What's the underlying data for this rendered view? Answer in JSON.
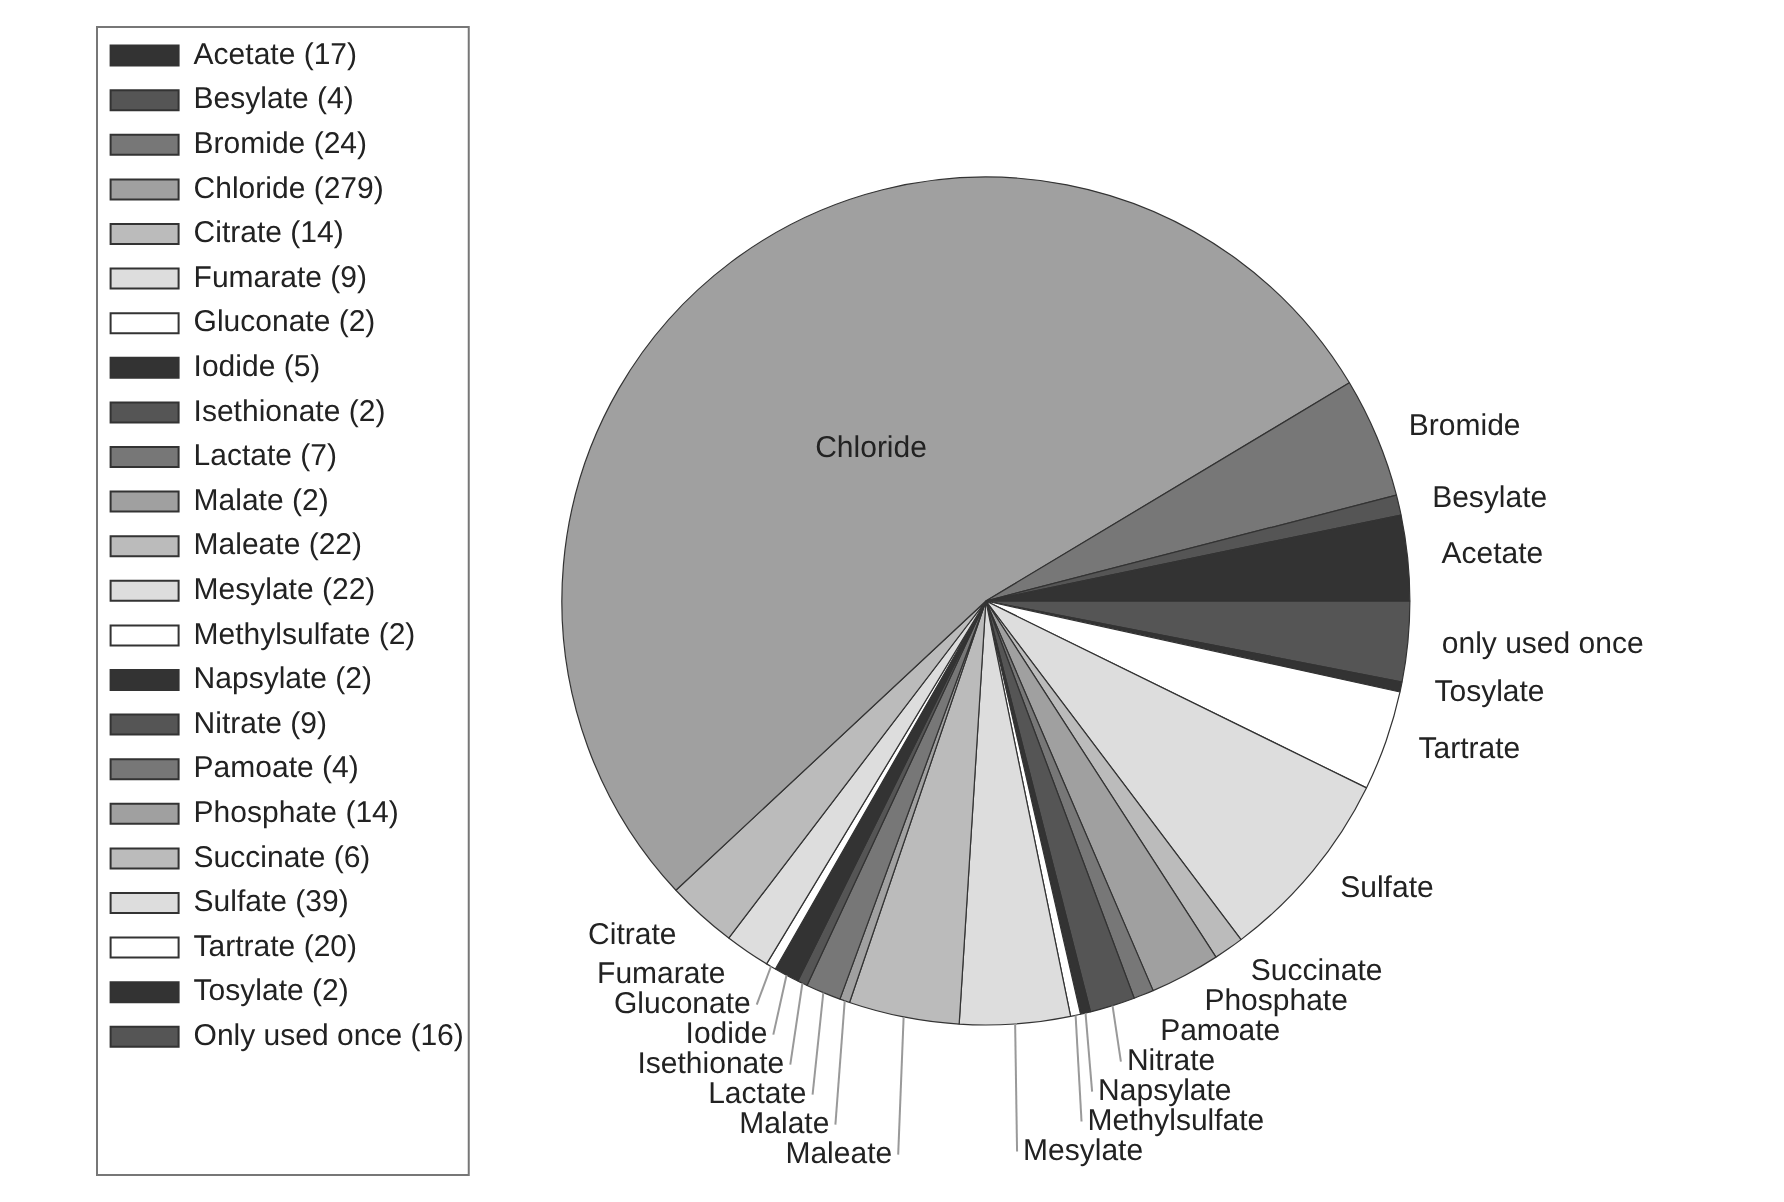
{
  "chart_data": {
    "type": "pie",
    "categories": [
      "Acetate (17)",
      "Besylate (4)",
      "Bromide (24)",
      "Chloride (279)",
      "Citrate (14)",
      "Fumarate (9)",
      "Gluconate (2)",
      "Iodide (5)",
      "Isethionate (2)",
      "Lactate (7)",
      "Malate (2)",
      "Maleate (22)",
      "Mesylate (22)",
      "Methylsulfate (2)",
      "Napsylate (2)",
      "Nitrate (9)",
      "Pamoate (4)",
      "Phosphate (14)",
      "Succinate (6)",
      "Sulfate (39)",
      "Tartrate (20)",
      "Tosylate (2)",
      "Only used once (16)"
    ],
    "values": [
      17,
      4,
      24,
      279,
      14,
      9,
      2,
      5,
      2,
      7,
      2,
      22,
      22,
      2,
      2,
      9,
      4,
      14,
      6,
      39,
      20,
      2,
      16
    ],
    "colors": [
      "#333333",
      "#555555",
      "#777777",
      "#a0a0a0",
      "#bbbbbb",
      "#dddddd",
      "#ffffff",
      "#333333",
      "#555555",
      "#777777",
      "#a0a0a0",
      "#bbbbbb",
      "#dddddd",
      "#ffffff",
      "#333333",
      "#555555",
      "#777777",
      "#a0a0a0",
      "#bbbbbb",
      "#dddddd",
      "#ffffff",
      "#333333",
      "#555555"
    ],
    "annotations": [
      "Acetate",
      "Besylate",
      "Bromide",
      "Chloride",
      "Citrate",
      "Fumarate",
      "Gluconate",
      "Iodide",
      "Isethionate",
      "Lactate",
      "Malate",
      "Maleate",
      "Mesylate",
      "Methylsulfate",
      "Napsylate",
      "Nitrate",
      "Pamoate",
      "Phosphate",
      "Succinate",
      "Sulfate",
      "Tartrate",
      "Tosylate",
      "only used once"
    ],
    "legend": "left"
  }
}
